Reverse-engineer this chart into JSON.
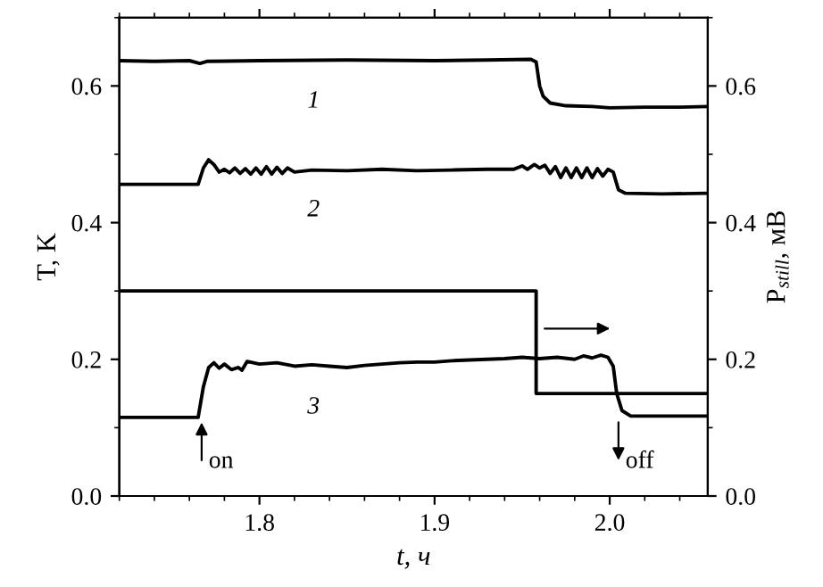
{
  "chart_data": {
    "type": "line",
    "xlabel": "t, ч",
    "ylabel": "T, K",
    "y2label": "P$_{still}$, мВ",
    "xlim": [
      1.72,
      2.056
    ],
    "ylim": [
      0,
      0.7
    ],
    "y2lim": [
      0,
      0.7
    ],
    "xticks": [
      1.8,
      1.9,
      {
        "value": 2.0,
        "label": "2.0"
      }
    ],
    "yticks": [
      {
        "value": 0,
        "label": "0.0"
      },
      0.2,
      0.4,
      0.6
    ],
    "y2ticks": [
      {
        "value": 0,
        "label": "0.0"
      },
      0.2,
      0.4,
      0.6
    ],
    "grid": false,
    "legend": false,
    "marker": "none",
    "line_style": "solid",
    "annotations": [
      {
        "text": "on",
        "x": 1.767,
        "y": 0.115
      },
      {
        "text": "off",
        "x": 2.005,
        "y": 0.115
      }
    ],
    "series": [
      {
        "name": "1",
        "color": "#000000",
        "x": [
          1.72,
          1.74,
          1.76,
          1.766,
          1.77,
          1.8,
          1.85,
          1.9,
          1.93,
          1.955,
          1.958,
          1.96,
          1.962,
          1.966,
          1.975,
          1.99,
          2.0,
          2.02,
          2.04,
          2.056
        ],
        "values": [
          0.637,
          0.636,
          0.637,
          0.633,
          0.636,
          0.637,
          0.638,
          0.637,
          0.638,
          0.639,
          0.635,
          0.6,
          0.585,
          0.575,
          0.571,
          0.57,
          0.568,
          0.569,
          0.569,
          0.57
        ]
      },
      {
        "name": "2",
        "color": "#000000",
        "x": [
          1.72,
          1.765,
          1.768,
          1.771,
          1.774,
          1.777,
          1.78,
          1.783,
          1.786,
          1.789,
          1.792,
          1.795,
          1.798,
          1.801,
          1.804,
          1.807,
          1.81,
          1.813,
          1.816,
          1.82,
          1.83,
          1.85,
          1.87,
          1.89,
          1.91,
          1.93,
          1.945,
          1.95,
          1.953,
          1.957,
          1.96,
          1.963,
          1.966,
          1.969,
          1.972,
          1.975,
          1.978,
          1.981,
          1.984,
          1.987,
          1.99,
          1.993,
          1.996,
          1.999,
          2.002,
          2.005,
          2.009,
          2.03,
          2.056
        ],
        "values": [
          0.456,
          0.456,
          0.48,
          0.492,
          0.485,
          0.474,
          0.478,
          0.473,
          0.48,
          0.472,
          0.479,
          0.471,
          0.48,
          0.471,
          0.482,
          0.471,
          0.481,
          0.472,
          0.48,
          0.474,
          0.477,
          0.476,
          0.478,
          0.476,
          0.477,
          0.478,
          0.478,
          0.483,
          0.478,
          0.485,
          0.48,
          0.484,
          0.472,
          0.482,
          0.466,
          0.48,
          0.466,
          0.48,
          0.466,
          0.48,
          0.466,
          0.479,
          0.468,
          0.478,
          0.474,
          0.448,
          0.443,
          0.442,
          0.443
        ]
      },
      {
        "name": "3",
        "color": "#000000",
        "x": [
          1.72,
          1.765,
          1.768,
          1.771,
          1.774,
          1.777,
          1.78,
          1.784,
          1.788,
          1.79,
          1.793,
          1.8,
          1.81,
          1.82,
          1.83,
          1.84,
          1.85,
          1.86,
          1.87,
          1.88,
          1.89,
          1.9,
          1.91,
          1.92,
          1.93,
          1.94,
          1.95,
          1.96,
          1.97,
          1.98,
          1.985,
          1.99,
          1.995,
          1.999,
          2.002,
          2.004,
          2.007,
          2.012,
          2.056
        ],
        "values": [
          0.115,
          0.115,
          0.16,
          0.188,
          0.195,
          0.187,
          0.193,
          0.185,
          0.188,
          0.184,
          0.197,
          0.193,
          0.195,
          0.19,
          0.192,
          0.19,
          0.188,
          0.191,
          0.193,
          0.195,
          0.196,
          0.196,
          0.198,
          0.199,
          0.2,
          0.201,
          0.203,
          0.201,
          0.203,
          0.2,
          0.205,
          0.202,
          0.206,
          0.203,
          0.19,
          0.15,
          0.125,
          0.117,
          0.117
        ]
      },
      {
        "color": "#000000",
        "axis": "y2",
        "x": [
          1.72,
          1.958,
          1.958,
          2.056
        ],
        "values": [
          0.3,
          0.3,
          0.15,
          0.15
        ]
      }
    ]
  }
}
